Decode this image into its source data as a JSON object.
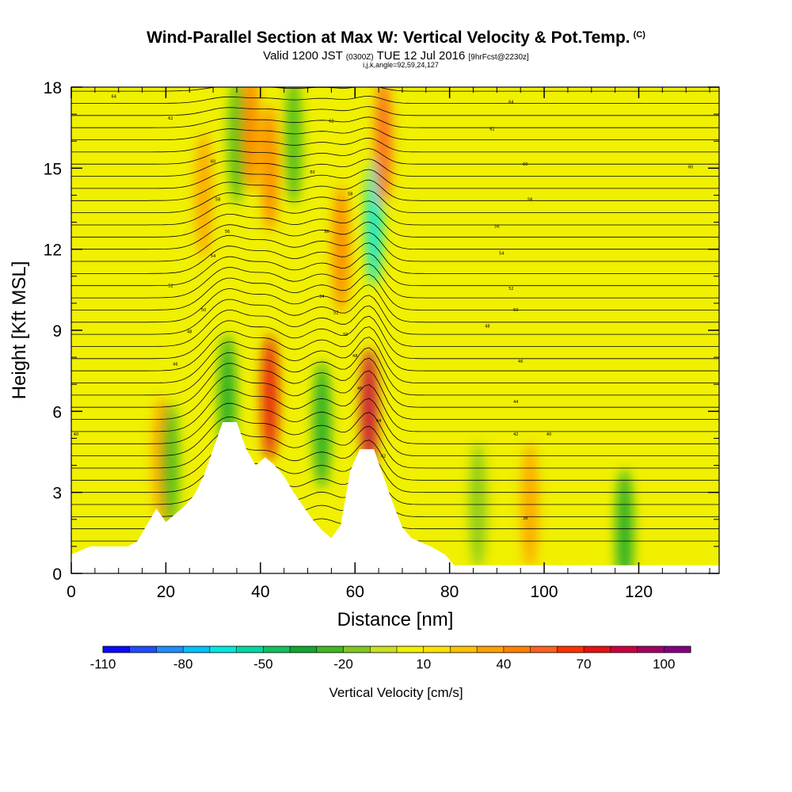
{
  "chart_data": {
    "type": "heatmap",
    "title": "Wind-Parallel Section at Max W: Vertical Velocity & Pot.Temp.",
    "title_tag": "(C)",
    "subtitle": {
      "valid": "Valid 1200 JST",
      "utc": "(0300Z)",
      "date": "TUE 12 Jul 2016",
      "forecast": "[9hrFcst@2230z]"
    },
    "params_line": "i,j,k,angle=92,59,24,127",
    "xlabel": "Distance [nm]",
    "ylabel": "Height [Kft MSL]",
    "xlim": [
      0,
      137
    ],
    "ylim": [
      0,
      18
    ],
    "x_ticks": [
      0,
      20,
      40,
      60,
      80,
      100,
      120
    ],
    "y_ticks": [
      0,
      3,
      6,
      9,
      12,
      15,
      18
    ],
    "colorbar": {
      "title": "Vertical Velocity [cm/s]",
      "ticks": [
        -110,
        -80,
        -50,
        -20,
        10,
        40,
        70,
        100
      ],
      "levels": [
        -110,
        -100,
        -90,
        -80,
        -70,
        -60,
        -50,
        -40,
        -30,
        -20,
        -10,
        0,
        10,
        20,
        30,
        40,
        50,
        60,
        70,
        80,
        90,
        100,
        110
      ],
      "colors": [
        "#0a0aff",
        "#1f4cff",
        "#1f8cff",
        "#00c0ff",
        "#00e8e0",
        "#00d8a0",
        "#10c060",
        "#10a830",
        "#40b820",
        "#80c820",
        "#c8e020",
        "#f0f000",
        "#ffe000",
        "#ffc000",
        "#ffa000",
        "#ff8000",
        "#ff6020",
        "#ff3000",
        "#e81010",
        "#c80040",
        "#a00060",
        "#800080"
      ]
    },
    "vv_features": [
      {
        "x": 19,
        "y": 4.2,
        "vv": 30
      },
      {
        "x": 21,
        "y": 4.0,
        "vv": -30
      },
      {
        "x": 28,
        "y": 14,
        "vv": 30
      },
      {
        "x": 33,
        "y": 6.5,
        "vv": -40
      },
      {
        "x": 35,
        "y": 16,
        "vv": -30
      },
      {
        "x": 38,
        "y": 16.5,
        "vv": 40
      },
      {
        "x": 42,
        "y": 6.5,
        "vv": 70
      },
      {
        "x": 42,
        "y": 15,
        "vv": 40
      },
      {
        "x": 47,
        "y": 16,
        "vv": -30
      },
      {
        "x": 53,
        "y": 5.5,
        "vv": -40
      },
      {
        "x": 57,
        "y": 12,
        "vv": 40
      },
      {
        "x": 63,
        "y": 6.0,
        "vv": 80
      },
      {
        "x": 64,
        "y": 13,
        "vv": -70
      },
      {
        "x": 66,
        "y": 16,
        "vv": 50
      },
      {
        "x": 86,
        "y": 2.5,
        "vv": -20
      },
      {
        "x": 97,
        "y": 2.5,
        "vv": 30
      },
      {
        "x": 117,
        "y": 1.5,
        "vv": -40
      }
    ],
    "terrain_top_kft": [
      [
        0,
        0.7
      ],
      [
        4,
        1.0
      ],
      [
        12,
        1.0
      ],
      [
        14,
        1.2
      ],
      [
        16,
        1.8
      ],
      [
        18,
        2.4
      ],
      [
        20,
        1.9
      ],
      [
        24,
        2.5
      ],
      [
        26,
        2.9
      ],
      [
        28,
        3.6
      ],
      [
        30,
        4.6
      ],
      [
        32,
        5.6
      ],
      [
        35,
        5.6
      ],
      [
        37,
        4.6
      ],
      [
        39,
        4.0
      ],
      [
        41,
        4.3
      ],
      [
        43,
        4.0
      ],
      [
        45,
        3.6
      ],
      [
        47,
        3.0
      ],
      [
        49,
        2.5
      ],
      [
        51,
        2.0
      ],
      [
        53,
        1.6
      ],
      [
        55,
        1.3
      ],
      [
        57,
        1.8
      ],
      [
        59,
        3.8
      ],
      [
        61,
        4.6
      ],
      [
        64,
        4.6
      ],
      [
        66,
        3.6
      ],
      [
        68,
        2.6
      ],
      [
        70,
        1.7
      ],
      [
        72,
        1.3
      ],
      [
        76,
        1.0
      ],
      [
        79,
        0.7
      ],
      [
        81,
        0.3
      ],
      [
        137,
        0.3
      ]
    ],
    "theta_labels": [
      {
        "x": 9,
        "y": 17.6,
        "text": "64"
      },
      {
        "x": 21,
        "y": 16.8,
        "text": "62"
      },
      {
        "x": 30,
        "y": 15.2,
        "text": "60"
      },
      {
        "x": 31,
        "y": 13.8,
        "text": "58"
      },
      {
        "x": 33,
        "y": 12.6,
        "text": "56"
      },
      {
        "x": 30,
        "y": 11.7,
        "text": "54"
      },
      {
        "x": 21,
        "y": 10.6,
        "text": "52"
      },
      {
        "x": 28,
        "y": 9.7,
        "text": "50"
      },
      {
        "x": 25,
        "y": 8.9,
        "text": "48"
      },
      {
        "x": 22,
        "y": 7.7,
        "text": "46"
      },
      {
        "x": 1,
        "y": 5.1,
        "text": "40"
      },
      {
        "x": 55,
        "y": 16.7,
        "text": "62"
      },
      {
        "x": 51,
        "y": 14.8,
        "text": "60"
      },
      {
        "x": 59,
        "y": 14.0,
        "text": "58"
      },
      {
        "x": 54,
        "y": 12.6,
        "text": "56"
      },
      {
        "x": 53,
        "y": 10.2,
        "text": "54"
      },
      {
        "x": 56,
        "y": 9.6,
        "text": "52"
      },
      {
        "x": 58,
        "y": 8.8,
        "text": "50"
      },
      {
        "x": 60,
        "y": 8.0,
        "text": "48"
      },
      {
        "x": 61,
        "y": 6.8,
        "text": "46"
      },
      {
        "x": 65,
        "y": 5.6,
        "text": "44"
      },
      {
        "x": 66,
        "y": 4.3,
        "text": "42"
      },
      {
        "x": 93,
        "y": 17.4,
        "text": "64"
      },
      {
        "x": 89,
        "y": 16.4,
        "text": "62"
      },
      {
        "x": 96,
        "y": 15.1,
        "text": "60"
      },
      {
        "x": 97,
        "y": 13.8,
        "text": "58"
      },
      {
        "x": 90,
        "y": 12.8,
        "text": "56"
      },
      {
        "x": 91,
        "y": 11.8,
        "text": "54"
      },
      {
        "x": 93,
        "y": 10.5,
        "text": "52"
      },
      {
        "x": 94,
        "y": 9.7,
        "text": "50"
      },
      {
        "x": 88,
        "y": 9.1,
        "text": "48"
      },
      {
        "x": 95,
        "y": 7.8,
        "text": "46"
      },
      {
        "x": 94,
        "y": 6.3,
        "text": "44"
      },
      {
        "x": 94,
        "y": 5.1,
        "text": "42"
      },
      {
        "x": 101,
        "y": 5.1,
        "text": "40"
      },
      {
        "x": 96,
        "y": 2.0,
        "text": "38"
      },
      {
        "x": 131,
        "y": 15.0,
        "text": "60"
      }
    ]
  }
}
